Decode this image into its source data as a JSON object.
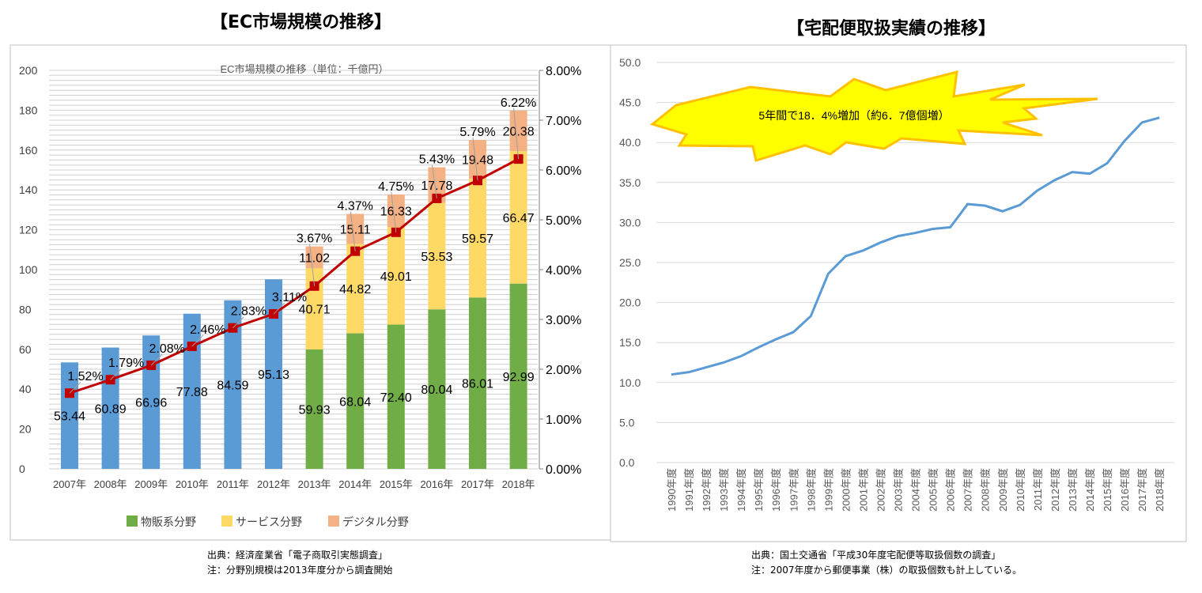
{
  "titles": {
    "left": "【EC市場規模の推移】",
    "right": "【宅配便取扱実績の推移】"
  },
  "notes": {
    "left": [
      "出典：経済産業省「電子商取引実態調査」",
      "注：分野別規模は2013年度分から調査開始"
    ],
    "right": [
      "出典：国土交通省「平成30年度宅配便等取扱個数の調査」",
      "注：2007年度から郵便事業（株）の取扱個数も計上している。"
    ]
  },
  "chart_data": [
    {
      "type": "bar",
      "title": "EC市場規模の推移（単位：千億円）",
      "categories": [
        "2007年",
        "2008年",
        "2009年",
        "2010年",
        "2011年",
        "2012年",
        "2013年",
        "2014年",
        "2015年",
        "2016年",
        "2017年",
        "2018年"
      ],
      "total_values": [
        53.44,
        60.89,
        66.96,
        77.88,
        84.59,
        95.13,
        null,
        null,
        null,
        null,
        null,
        null
      ],
      "series": [
        {
          "name": "物販系分野",
          "values": [
            null,
            null,
            null,
            null,
            null,
            null,
            59.93,
            68.04,
            72.4,
            80.04,
            86.01,
            92.99
          ]
        },
        {
          "name": "サービス分野",
          "values": [
            null,
            null,
            null,
            null,
            null,
            null,
            40.71,
            44.82,
            49.01,
            53.53,
            59.57,
            66.47
          ]
        },
        {
          "name": "デジタル分野",
          "values": [
            null,
            null,
            null,
            null,
            null,
            null,
            11.02,
            15.11,
            16.33,
            17.78,
            19.48,
            20.38
          ]
        }
      ],
      "line_series": {
        "values": [
          "1.52%",
          "1.79%",
          "2.08%",
          "2.46%",
          "2.83%",
          "3.11%",
          "3.67%",
          "4.37%",
          "4.75%",
          "5.43%",
          "5.79%",
          "6.22%"
        ]
      },
      "ylim": [
        0,
        200
      ],
      "yticks": [
        "0",
        "20",
        "40",
        "60",
        "80",
        "100",
        "120",
        "140",
        "160",
        "180",
        "200"
      ],
      "y2lim": [
        0,
        8
      ],
      "y2ticks": [
        "0.00%",
        "1.00%",
        "2.00%",
        "3.00%",
        "4.00%",
        "5.00%",
        "6.00%",
        "7.00%",
        "8.00%"
      ],
      "legend": "bottom",
      "colors": {
        "total": "#5b9bd5",
        "物販系分野": "#70ad47",
        "サービス分野": "#ffd966",
        "デジタル分野": "#f4b183",
        "line": "#c00000"
      }
    },
    {
      "type": "line",
      "categories": [
        "1990年度",
        "1991年度",
        "1992年度",
        "1993年度",
        "1994年度",
        "1995年度",
        "1996年度",
        "1997年度",
        "1998年度",
        "1999年度",
        "2000年度",
        "2001年度",
        "2002年度",
        "2003年度",
        "2004年度",
        "2005年度",
        "2006年度",
        "2007年度",
        "2008年度",
        "2009年度",
        "2010年度",
        "2011年度",
        "2012年度",
        "2013年度",
        "2014年度",
        "2015年度",
        "2016年度",
        "2017年度",
        "2018年度"
      ],
      "values": [
        11.0,
        11.3,
        11.9,
        12.5,
        13.3,
        14.4,
        15.4,
        16.3,
        18.3,
        23.6,
        25.8,
        26.5,
        27.5,
        28.3,
        28.7,
        29.2,
        29.4,
        32.3,
        32.1,
        31.4,
        32.2,
        34.0,
        35.3,
        36.3,
        36.1,
        37.4,
        40.2,
        42.5,
        43.1
      ],
      "ylim": [
        0,
        50
      ],
      "yticks": [
        "0.0",
        "5.0",
        "10.0",
        "15.0",
        "20.0",
        "25.0",
        "30.0",
        "35.0",
        "40.0",
        "45.0",
        "50.0"
      ],
      "annotation": "5年間で18．4%増加（約6．7億個増）",
      "colors": {
        "line": "#5b9bd5",
        "burst_fill": "#ffff00",
        "burst_stroke": "#ffc000"
      }
    }
  ]
}
